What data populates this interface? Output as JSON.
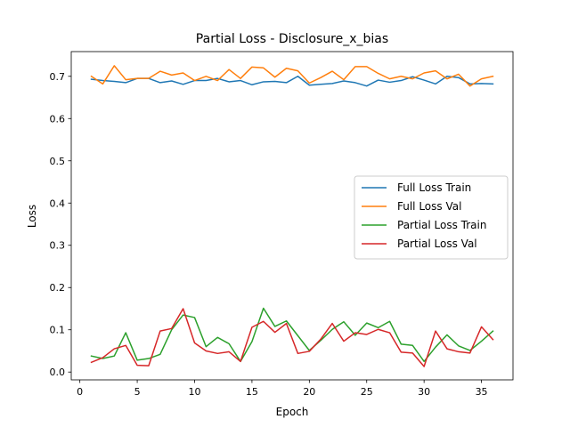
{
  "chart_data": {
    "type": "line",
    "title": "Partial Loss - Disclosure_x_bias",
    "xlabel": "Epoch",
    "ylabel": "Loss",
    "xlim": [
      -0.75,
      37.75
    ],
    "ylim": [
      -0.0185,
      0.7585
    ],
    "xticks": [
      0,
      5,
      10,
      15,
      20,
      25,
      30,
      35
    ],
    "yticks": [
      0.0,
      0.1,
      0.2,
      0.3,
      0.4,
      0.5,
      0.6,
      0.7
    ],
    "ytick_labels": [
      "0.0",
      "0.1",
      "0.2",
      "0.3",
      "0.4",
      "0.5",
      "0.6",
      "0.7"
    ],
    "grid": false,
    "legend_position": "center-right",
    "x": [
      1,
      2,
      3,
      4,
      5,
      6,
      7,
      8,
      9,
      10,
      11,
      12,
      13,
      14,
      15,
      16,
      17,
      18,
      19,
      20,
      21,
      22,
      23,
      24,
      25,
      26,
      27,
      28,
      29,
      30,
      31,
      32,
      33,
      34,
      35,
      36
    ],
    "series": [
      {
        "name": "Full Loss Train",
        "color": "#1f77b4",
        "values": [
          0.693,
          0.69,
          0.688,
          0.685,
          0.695,
          0.695,
          0.685,
          0.689,
          0.681,
          0.69,
          0.69,
          0.695,
          0.687,
          0.69,
          0.68,
          0.687,
          0.688,
          0.685,
          0.7,
          0.679,
          0.681,
          0.683,
          0.689,
          0.685,
          0.677,
          0.691,
          0.686,
          0.69,
          0.699,
          0.691,
          0.682,
          0.7,
          0.697,
          0.682,
          0.683,
          0.682
        ]
      },
      {
        "name": "Full Loss Val",
        "color": "#ff7f0e",
        "values": [
          0.7,
          0.682,
          0.725,
          0.692,
          0.695,
          0.695,
          0.712,
          0.703,
          0.708,
          0.69,
          0.7,
          0.69,
          0.716,
          0.695,
          0.722,
          0.72,
          0.698,
          0.719,
          0.713,
          0.684,
          0.697,
          0.712,
          0.692,
          0.723,
          0.723,
          0.707,
          0.694,
          0.7,
          0.694,
          0.708,
          0.713,
          0.694,
          0.705,
          0.677,
          0.694,
          0.7
        ]
      },
      {
        "name": "Partial Loss Train",
        "color": "#2ca02c",
        "values": [
          0.038,
          0.032,
          0.038,
          0.093,
          0.028,
          0.032,
          0.042,
          0.1,
          0.135,
          0.129,
          0.06,
          0.082,
          0.067,
          0.025,
          0.072,
          0.151,
          0.108,
          0.121,
          0.086,
          0.051,
          0.075,
          0.101,
          0.119,
          0.087,
          0.116,
          0.105,
          0.12,
          0.066,
          0.063,
          0.025,
          0.059,
          0.088,
          0.062,
          0.051,
          0.073,
          0.097
        ]
      },
      {
        "name": "Partial Loss Val",
        "color": "#d62728",
        "values": [
          0.023,
          0.034,
          0.055,
          0.063,
          0.016,
          0.015,
          0.097,
          0.103,
          0.15,
          0.069,
          0.05,
          0.044,
          0.048,
          0.025,
          0.106,
          0.12,
          0.094,
          0.115,
          0.044,
          0.049,
          0.078,
          0.115,
          0.073,
          0.093,
          0.089,
          0.101,
          0.093,
          0.047,
          0.045,
          0.013,
          0.097,
          0.055,
          0.048,
          0.045,
          0.107,
          0.077
        ]
      }
    ]
  }
}
